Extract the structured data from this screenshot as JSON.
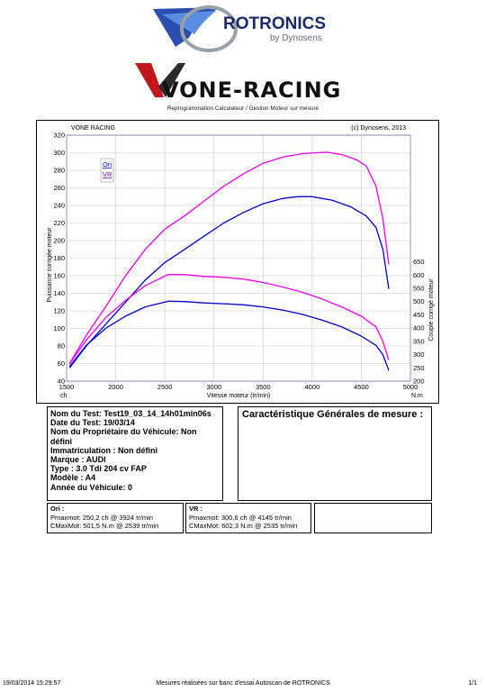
{
  "logos": {
    "rotronics_name": "ROTRONICS",
    "rotronics_by": "by Dynosens",
    "vone_name": "VONE-RACING",
    "vone_tagline": "Reprogrammation Calculateur / Gestion Moteur sur mesure"
  },
  "chart_header": {
    "left": "VONE RACING",
    "right": "(c) Dynosens, 2013"
  },
  "chart_data": {
    "type": "line",
    "xlabel": "Vitesse moteur (tr/min)",
    "xunit_left": "ch",
    "xunit_right": "N.m",
    "ylabel_left": "Puissance corrigée moteur",
    "ylabel_right": "Couple corrigé moteur",
    "xlim": [
      1500,
      5000
    ],
    "ylim_left": [
      40,
      320
    ],
    "ylim_right": [
      200,
      650
    ],
    "x_ticks": [
      1500,
      2000,
      2500,
      3000,
      3500,
      4000,
      4500,
      5000
    ],
    "y_ticks_left": [
      40,
      60,
      80,
      100,
      120,
      140,
      160,
      180,
      200,
      220,
      240,
      260,
      280,
      300,
      320
    ],
    "y_ticks_right": [
      200,
      250,
      300,
      350,
      400,
      450,
      500,
      550,
      600,
      650
    ],
    "grid": true,
    "legend": {
      "placement": "top-left",
      "entries": [
        "Ori",
        "VR"
      ]
    },
    "series": [
      {
        "name": "Ori",
        "axis": "left",
        "color": "#0000cc",
        "x": [
          1530,
          1700,
          1900,
          2100,
          2300,
          2500,
          2700,
          2900,
          3100,
          3300,
          3500,
          3700,
          3850,
          3924,
          4000,
          4200,
          4400,
          4550,
          4650,
          4720,
          4780
        ],
        "values": [
          55,
          80,
          105,
          130,
          155,
          175,
          190,
          205,
          220,
          232,
          242,
          248,
          250,
          250.2,
          250,
          246,
          238,
          228,
          215,
          190,
          145
        ]
      },
      {
        "name": "VR",
        "axis": "left",
        "color": "#ee00ee",
        "x": [
          1530,
          1700,
          1900,
          2100,
          2300,
          2500,
          2700,
          2900,
          3100,
          3300,
          3500,
          3700,
          3900,
          4050,
          4145,
          4300,
          4450,
          4550,
          4650,
          4720,
          4780
        ],
        "values": [
          60,
          92,
          125,
          160,
          190,
          213,
          228,
          245,
          262,
          276,
          288,
          295,
          299,
          300,
          300.6,
          298,
          292,
          285,
          262,
          225,
          173
        ]
      },
      {
        "name": "Ori",
        "axis": "right",
        "color": "#0000cc",
        "x": [
          1530,
          1700,
          1900,
          2100,
          2300,
          2539,
          2700,
          2900,
          3100,
          3300,
          3500,
          3700,
          3900,
          4100,
          4300,
          4500,
          4650,
          4720,
          4780
        ],
        "values": [
          255,
          335,
          400,
          445,
          480,
          501.5,
          500,
          495,
          492,
          488,
          480,
          468,
          452,
          430,
          405,
          370,
          335,
          300,
          240
        ]
      },
      {
        "name": "VR",
        "axis": "right",
        "color": "#ee00ee",
        "x": [
          1530,
          1700,
          1900,
          2100,
          2300,
          2535,
          2700,
          2900,
          3100,
          3300,
          3500,
          3700,
          3900,
          4100,
          4300,
          4500,
          4650,
          4720,
          4780
        ],
        "values": [
          265,
          355,
          440,
          505,
          560,
          602.3,
          602,
          595,
          592,
          585,
          572,
          555,
          535,
          510,
          480,
          445,
          405,
          350,
          280
        ]
      }
    ]
  },
  "vehicle": {
    "line1": "Nom du Test: Test19_03_14_14h01min06s",
    "line2": "Date du Test: 19/03/14",
    "line3": "Nom du Propriétaire du Véhicule: Non",
    "line4": "défini",
    "line5": "Immatriculation  : Non défini",
    "line6": "Marque  : AUDI",
    "line7": "Type  : 3.0 Tdi 204 cv FAP",
    "line8": "Modèle  : A4",
    "line9": "Année du Véhicule: 0"
  },
  "mesure": {
    "title": "Caractéristique Générales de mesure :"
  },
  "results": {
    "ori_title": "Ori :",
    "ori_line1": "Pmaxmot: 250,2 ch @ 3924 tr/min",
    "ori_line2": "CMaxMot: 501,5 N.m @ 2539 tr/min",
    "vr_title": "VR :",
    "vr_line1": "Pmaxmot: 300,6 ch @ 4145 tr/min",
    "vr_line2": "CMaxMot: 602,3 N.m @ 2535 tr/min"
  },
  "footer": {
    "left": "19/03/2014 15:29:57",
    "center": "Mesures réalisées sur banc d'essai Autoscan de ROTRONICS",
    "right": "1/1"
  },
  "colors": {
    "ori": "#0000cc",
    "vr": "#ee00ee",
    "frame": "#5b3aa0",
    "vone_red": "#c0161c"
  }
}
